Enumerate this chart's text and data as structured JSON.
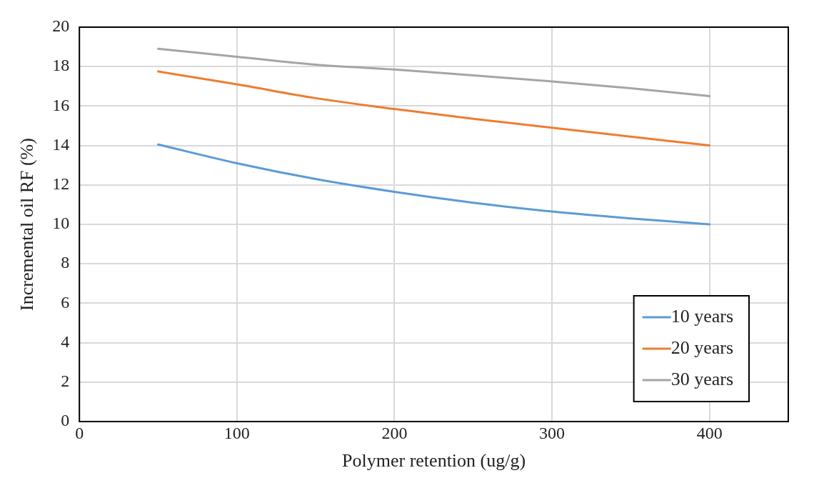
{
  "chart_data": {
    "type": "line",
    "xlabel": "Polymer retention (ug/g)",
    "ylabel": "Incremental oil RF (%)",
    "x": [
      50,
      100,
      150,
      200,
      250,
      300,
      350,
      400
    ],
    "series": [
      {
        "name": "10 years",
        "color": "#5b9bd5",
        "values": [
          14.05,
          13.1,
          12.3,
          11.65,
          11.1,
          10.65,
          10.3,
          10.0
        ]
      },
      {
        "name": "20 years",
        "color": "#ed7d31",
        "values": [
          17.75,
          17.1,
          16.4,
          15.85,
          15.35,
          14.9,
          14.45,
          14.0
        ]
      },
      {
        "name": "30 years",
        "color": "#a5a5a5",
        "values": [
          18.9,
          18.5,
          18.1,
          17.85,
          17.55,
          17.25,
          16.9,
          16.5
        ]
      }
    ],
    "xlim": [
      0,
      450
    ],
    "xticks": [
      0,
      100,
      200,
      300,
      400
    ],
    "ylim": [
      0,
      20
    ],
    "yticks": [
      0,
      2,
      4,
      6,
      8,
      10,
      12,
      14,
      16,
      18,
      20
    ],
    "grid": true,
    "legend": "bottom right",
    "marker": "none",
    "line_style": "solid"
  }
}
